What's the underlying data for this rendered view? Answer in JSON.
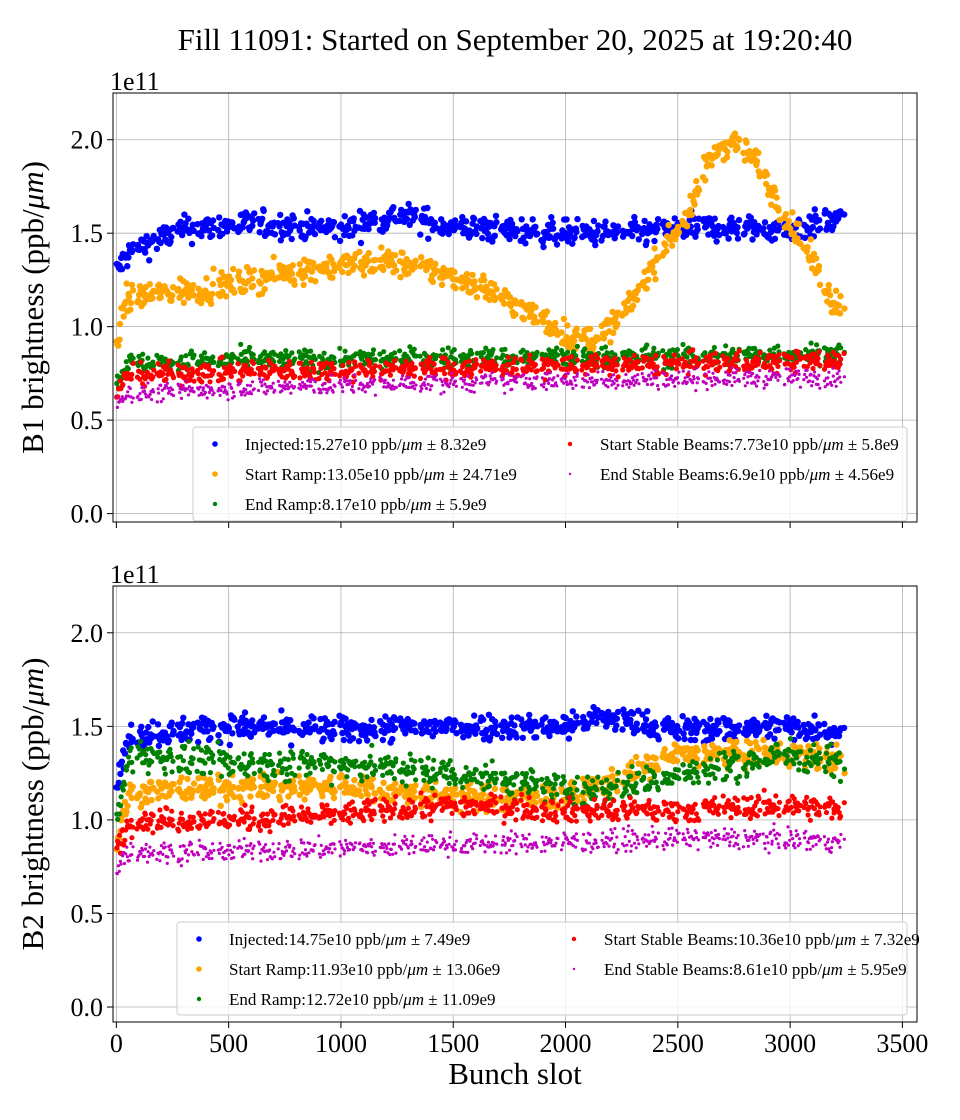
{
  "title": "Fill 11091: Started on September 20, 2025 at 19:20:40",
  "colors": {
    "Injected": "#0000ff",
    "Start Ramp": "#ffa500",
    "End Ramp": "#008000",
    "Start Stable Beams": "#ff0000",
    "End Stable Beams": "#bf00bf"
  },
  "chart_data": [
    {
      "type": "scatter",
      "ylabel": {
        "text": "B1 brightness (ppb/",
        "italic": "μm",
        "close": ")"
      },
      "xlabel": "",
      "offset_text": "1e11",
      "xlim": [
        -15,
        3565
      ],
      "ylim": [
        -0.045,
        2.25
      ],
      "xticks": [
        0,
        500,
        1000,
        1500,
        2000,
        2500,
        3000,
        3500
      ],
      "xtick_labels_shown": false,
      "yticks": [
        "0.0",
        "0.5",
        "1.0",
        "1.5",
        "2.0"
      ],
      "grid": true,
      "legend_placement": "lower-right",
      "legend": [
        {
          "label": "Injected:15.27e10 ppb/",
          "italic": "μm",
          "suffix": " ± 8.32e9"
        },
        {
          "label": "Start Ramp:13.05e10 ppb/",
          "italic": "μm",
          "suffix": " ± 24.71e9"
        },
        {
          "label": "End Ramp:8.17e10 ppb/",
          "italic": "μm",
          "suffix": " ± 5.9e9"
        },
        {
          "label": "Start Stable Beams:7.73e10 ppb/",
          "italic": "μm",
          "suffix": " ± 5.8e9"
        },
        {
          "label": "End Stable Beams:6.9e10 ppb/",
          "italic": "μm",
          "suffix": " ± 4.56e9"
        }
      ],
      "series": [
        {
          "name": "Injected",
          "trend": [
            [
              0,
              1.3
            ],
            [
              60,
              1.4
            ],
            [
              150,
              1.45
            ],
            [
              300,
              1.52
            ],
            [
              600,
              1.55
            ],
            [
              1000,
              1.52
            ],
            [
              1250,
              1.6
            ],
            [
              1500,
              1.53
            ],
            [
              2000,
              1.5
            ],
            [
              2300,
              1.5
            ],
            [
              2600,
              1.53
            ],
            [
              3000,
              1.52
            ],
            [
              3240,
              1.58
            ]
          ],
          "spread": 0.05
        },
        {
          "name": "Start Ramp",
          "trend": [
            [
              0,
              0.9
            ],
            [
              40,
              1.15
            ],
            [
              200,
              1.18
            ],
            [
              400,
              1.2
            ],
            [
              600,
              1.25
            ],
            [
              800,
              1.3
            ],
            [
              1000,
              1.33
            ],
            [
              1200,
              1.35
            ],
            [
              1400,
              1.3
            ],
            [
              1550,
              1.25
            ],
            [
              1650,
              1.2
            ],
            [
              1800,
              1.1
            ],
            [
              1950,
              1.0
            ],
            [
              2050,
              0.92
            ],
            [
              2150,
              0.95
            ],
            [
              2250,
              1.05
            ],
            [
              2350,
              1.25
            ],
            [
              2450,
              1.45
            ],
            [
              2550,
              1.6
            ],
            [
              2620,
              1.85
            ],
            [
              2680,
              1.95
            ],
            [
              2750,
              2.0
            ],
            [
              2850,
              1.88
            ],
            [
              2920,
              1.72
            ],
            [
              3000,
              1.55
            ],
            [
              3100,
              1.35
            ],
            [
              3180,
              1.15
            ],
            [
              3240,
              1.1
            ]
          ],
          "spread": 0.05
        },
        {
          "name": "End Ramp",
          "trend": [
            [
              0,
              0.7
            ],
            [
              40,
              0.8
            ],
            [
              500,
              0.82
            ],
            [
              1500,
              0.83
            ],
            [
              2500,
              0.84
            ],
            [
              3240,
              0.86
            ]
          ],
          "spread": 0.04
        },
        {
          "name": "Start Stable Beams",
          "trend": [
            [
              0,
              0.62
            ],
            [
              40,
              0.74
            ],
            [
              500,
              0.76
            ],
            [
              1500,
              0.78
            ],
            [
              2500,
              0.8
            ],
            [
              3240,
              0.82
            ]
          ],
          "spread": 0.04
        },
        {
          "name": "End Stable Beams",
          "trend": [
            [
              0,
              0.58
            ],
            [
              40,
              0.64
            ],
            [
              500,
              0.67
            ],
            [
              1500,
              0.7
            ],
            [
              2500,
              0.72
            ],
            [
              3240,
              0.73
            ]
          ],
          "spread": 0.035
        }
      ]
    },
    {
      "type": "scatter",
      "ylabel": {
        "text": "B2 brightness (ppb/",
        "italic": "μm",
        "close": ")"
      },
      "xlabel": "Bunch slot",
      "offset_text": "1e11",
      "xlim": [
        -15,
        3565
      ],
      "ylim": [
        -0.08,
        2.25
      ],
      "xticks": [
        0,
        500,
        1000,
        1500,
        2000,
        2500,
        3000,
        3500
      ],
      "xtick_labels": [
        "0",
        "500",
        "1000",
        "1500",
        "2000",
        "2500",
        "3000",
        "3500"
      ],
      "yticks": [
        "0.0",
        "0.5",
        "1.0",
        "1.5",
        "2.0"
      ],
      "grid": true,
      "legend_placement": "lower-right",
      "legend": [
        {
          "label": "Injected:14.75e10 ppb/",
          "italic": "μm",
          "suffix": " ± 7.49e9"
        },
        {
          "label": "Start Ramp:11.93e10 ppb/",
          "italic": "μm",
          "suffix": " ± 13.06e9"
        },
        {
          "label": "End Ramp:12.72e10 ppb/",
          "italic": "μm",
          "suffix": " ± 11.09e9"
        },
        {
          "label": "Start Stable Beams:10.36e10 ppb/",
          "italic": "μm",
          "suffix": " ± 7.32e9"
        },
        {
          "label": "End Stable Beams:8.61e10 ppb/",
          "italic": "μm",
          "suffix": " ± 5.95e9"
        }
      ],
      "series": [
        {
          "name": "Injected",
          "trend": [
            [
              0,
              1.2
            ],
            [
              60,
              1.45
            ],
            [
              500,
              1.5
            ],
            [
              1000,
              1.48
            ],
            [
              1500,
              1.5
            ],
            [
              2000,
              1.5
            ],
            [
              2150,
              1.55
            ],
            [
              2500,
              1.48
            ],
            [
              3000,
              1.5
            ],
            [
              3240,
              1.47
            ]
          ],
          "spread": 0.05
        },
        {
          "name": "Start Ramp",
          "trend": [
            [
              0,
              0.9
            ],
            [
              60,
              1.15
            ],
            [
              500,
              1.17
            ],
            [
              1000,
              1.18
            ],
            [
              1500,
              1.12
            ],
            [
              2000,
              1.12
            ],
            [
              2200,
              1.2
            ],
            [
              2500,
              1.35
            ],
            [
              2800,
              1.35
            ],
            [
              3000,
              1.35
            ],
            [
              3240,
              1.32
            ]
          ],
          "spread": 0.05
        },
        {
          "name": "End Ramp",
          "trend": [
            [
              0,
              1.0
            ],
            [
              60,
              1.35
            ],
            [
              500,
              1.3
            ],
            [
              1000,
              1.3
            ],
            [
              1500,
              1.25
            ],
            [
              1800,
              1.2
            ],
            [
              2100,
              1.15
            ],
            [
              2400,
              1.22
            ],
            [
              2700,
              1.28
            ],
            [
              3000,
              1.35
            ],
            [
              3240,
              1.3
            ]
          ],
          "spread": 0.06
        },
        {
          "name": "Start Stable Beams",
          "trend": [
            [
              0,
              0.85
            ],
            [
              60,
              1.0
            ],
            [
              500,
              1.0
            ],
            [
              1000,
              1.03
            ],
            [
              1500,
              1.08
            ],
            [
              2000,
              1.05
            ],
            [
              2500,
              1.05
            ],
            [
              3000,
              1.08
            ],
            [
              3240,
              1.05
            ]
          ],
          "spread": 0.045
        },
        {
          "name": "End Stable Beams",
          "trend": [
            [
              0,
              0.75
            ],
            [
              60,
              0.83
            ],
            [
              500,
              0.83
            ],
            [
              1000,
              0.85
            ],
            [
              1500,
              0.87
            ],
            [
              2000,
              0.88
            ],
            [
              2500,
              0.9
            ],
            [
              3000,
              0.9
            ],
            [
              3240,
              0.88
            ]
          ],
          "spread": 0.04
        }
      ]
    }
  ]
}
